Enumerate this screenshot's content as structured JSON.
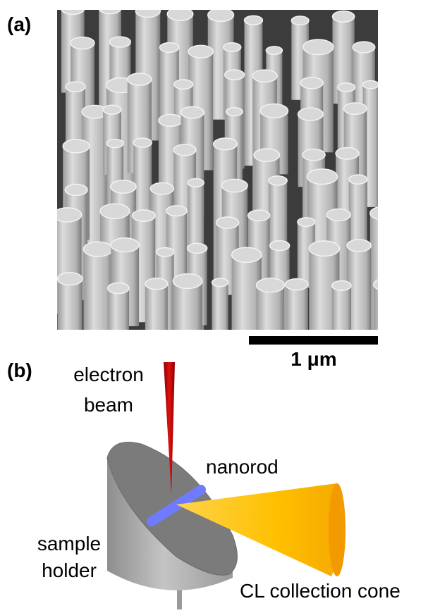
{
  "panels": [
    {
      "label": "(a)",
      "scale_bar": "1 μm"
    },
    {
      "label": "(b)",
      "electron_beam": [
        "electron",
        "beam"
      ],
      "nanorod": "nanorod",
      "sample_holder": [
        "sample",
        "holder"
      ],
      "cl_cone": "CL collection cone"
    }
  ]
}
